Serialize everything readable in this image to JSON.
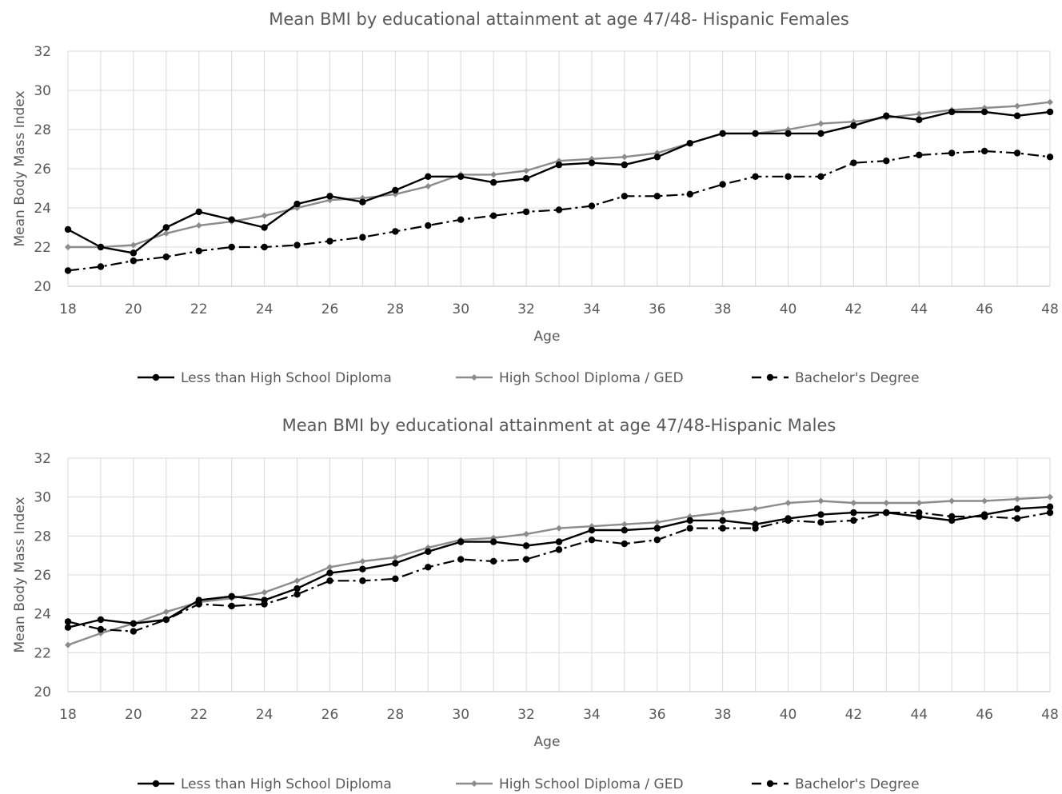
{
  "chart_data": [
    {
      "type": "line",
      "title": "Mean BMI by educational attainment at age 47/48- Hispanic Females",
      "xlabel": "Age",
      "ylabel": "Mean Body Mass Index",
      "xlim": [
        18,
        48
      ],
      "ylim": [
        20,
        32
      ],
      "xticks": [
        "18",
        "20",
        "22",
        "24",
        "26",
        "28",
        "30",
        "32",
        "34",
        "36",
        "38",
        "40",
        "42",
        "44",
        "46",
        "48"
      ],
      "yticks": [
        "20",
        "22",
        "24",
        "26",
        "28",
        "30",
        "32"
      ],
      "grid": true,
      "legend_position": "bottom",
      "x": [
        18,
        19,
        20,
        21,
        22,
        23,
        24,
        25,
        26,
        27,
        28,
        29,
        30,
        31,
        32,
        33,
        34,
        35,
        36,
        37,
        38,
        39,
        40,
        41,
        42,
        43,
        44,
        45,
        46,
        47,
        48
      ],
      "series": [
        {
          "name": "Less than High School Diploma",
          "color": "#000000",
          "style": "solid",
          "marker": "circle",
          "values": [
            22.9,
            22.0,
            21.7,
            23.0,
            23.8,
            23.4,
            23.0,
            24.2,
            24.6,
            24.3,
            24.9,
            25.6,
            25.6,
            25.3,
            25.5,
            26.2,
            26.3,
            26.2,
            26.6,
            27.3,
            27.8,
            27.8,
            27.8,
            27.8,
            28.2,
            28.7,
            28.5,
            28.9,
            28.9,
            28.7,
            28.9
          ]
        },
        {
          "name": "High School Diploma / GED",
          "color": "#8c8c8c",
          "style": "solid",
          "marker": "diamond",
          "values": [
            22.0,
            22.0,
            22.1,
            22.7,
            23.1,
            23.3,
            23.6,
            24.0,
            24.4,
            24.5,
            24.7,
            25.1,
            25.7,
            25.7,
            25.9,
            26.4,
            26.5,
            26.6,
            26.8,
            27.3,
            27.8,
            27.8,
            28.0,
            28.3,
            28.4,
            28.6,
            28.8,
            29.0,
            29.1,
            29.2,
            29.4
          ]
        },
        {
          "name": "Bachelor's Degree",
          "color": "#000000",
          "style": "dashdot",
          "marker": "circle",
          "values": [
            20.8,
            21.0,
            21.3,
            21.5,
            21.8,
            22.0,
            22.0,
            22.1,
            22.3,
            22.5,
            22.8,
            23.1,
            23.4,
            23.6,
            23.8,
            23.9,
            24.1,
            24.6,
            24.6,
            24.7,
            25.2,
            25.6,
            25.6,
            25.6,
            26.3,
            26.4,
            26.7,
            26.8,
            26.9,
            26.8,
            26.6
          ]
        }
      ]
    },
    {
      "type": "line",
      "title": "Mean BMI by educational attainment at age 47/48-Hispanic Males",
      "xlabel": "Age",
      "ylabel": "Mean Body Mass Index",
      "xlim": [
        18,
        48
      ],
      "ylim": [
        20,
        32
      ],
      "xticks": [
        "18",
        "20",
        "22",
        "24",
        "26",
        "28",
        "30",
        "32",
        "34",
        "36",
        "38",
        "40",
        "42",
        "44",
        "46",
        "48"
      ],
      "yticks": [
        "20",
        "22",
        "24",
        "26",
        "28",
        "30",
        "32"
      ],
      "grid": true,
      "legend_position": "bottom",
      "x": [
        18,
        19,
        20,
        21,
        22,
        23,
        24,
        25,
        26,
        27,
        28,
        29,
        30,
        31,
        32,
        33,
        34,
        35,
        36,
        37,
        38,
        39,
        40,
        41,
        42,
        43,
        44,
        45,
        46,
        47,
        48
      ],
      "series": [
        {
          "name": "Less than High School Diploma",
          "color": "#000000",
          "style": "solid",
          "marker": "circle",
          "values": [
            23.3,
            23.7,
            23.5,
            23.7,
            24.7,
            24.9,
            24.7,
            25.3,
            26.1,
            26.3,
            26.6,
            27.2,
            27.7,
            27.7,
            27.5,
            27.7,
            28.3,
            28.3,
            28.4,
            28.8,
            28.8,
            28.6,
            28.9,
            29.1,
            29.2,
            29.2,
            29.0,
            28.8,
            29.1,
            29.4,
            29.5
          ]
        },
        {
          "name": "High School Diploma / GED",
          "color": "#8c8c8c",
          "style": "solid",
          "marker": "diamond",
          "values": [
            22.4,
            23.0,
            23.5,
            24.1,
            24.6,
            24.8,
            25.1,
            25.7,
            26.4,
            26.7,
            26.9,
            27.4,
            27.8,
            27.9,
            28.1,
            28.4,
            28.5,
            28.6,
            28.7,
            29.0,
            29.2,
            29.4,
            29.7,
            29.8,
            29.7,
            29.7,
            29.7,
            29.8,
            29.8,
            29.9,
            30.0
          ]
        },
        {
          "name": "Bachelor's Degree",
          "color": "#000000",
          "style": "dashdot",
          "marker": "circle",
          "values": [
            23.6,
            23.2,
            23.1,
            23.7,
            24.5,
            24.4,
            24.5,
            25.0,
            25.7,
            25.7,
            25.8,
            26.4,
            26.8,
            26.7,
            26.8,
            27.3,
            27.8,
            27.6,
            27.8,
            28.4,
            28.4,
            28.4,
            28.8,
            28.7,
            28.8,
            29.2,
            29.2,
            29.0,
            29.0,
            28.9,
            29.2
          ]
        }
      ]
    }
  ]
}
